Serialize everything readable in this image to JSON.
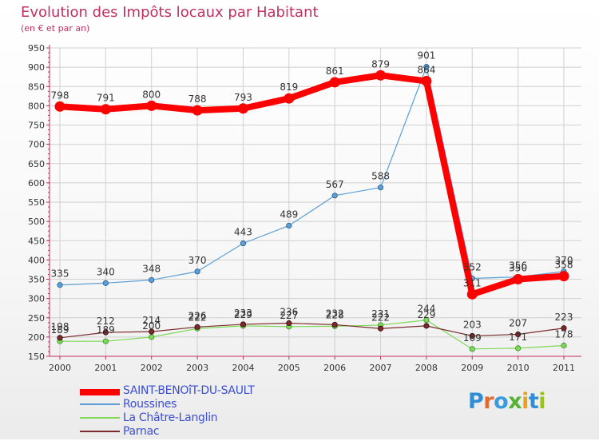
{
  "title": "Evolution des Impôts locaux par Habitant",
  "subtitle": "(en € et par an)",
  "logo": {
    "text": "Proxiti",
    "letters": [
      "P",
      "r",
      "o",
      "x",
      "i",
      "t",
      "i"
    ]
  },
  "colors": {
    "saint_benoit": "#ff0000",
    "roussines": "#5a9fd6",
    "la_chatre": "#7ed957",
    "parnac": "#7a2a2a",
    "axis": "#c03060",
    "grid": "#d0d0d0",
    "legend_text": "#3a4fd4"
  },
  "chart_data": {
    "type": "line",
    "title": "Evolution des Impôts locaux par Habitant",
    "subtitle": "(en € et par an)",
    "xlabel": "",
    "ylabel": "",
    "ylim": [
      150,
      950
    ],
    "yticks": [
      150,
      200,
      250,
      300,
      350,
      400,
      450,
      500,
      550,
      600,
      650,
      700,
      750,
      800,
      850,
      900,
      950
    ],
    "x": [
      "2000",
      "2001",
      "2002",
      "2003",
      "2004",
      "2005",
      "2006",
      "2007",
      "2008",
      "2009",
      "2010",
      "2011"
    ],
    "legend_position": "bottom-left",
    "grid": true,
    "series": [
      {
        "name": "SAINT-BENOîT-DU-SAULT",
        "key": "saint_benoit",
        "values": [
          798,
          791,
          800,
          788,
          793,
          819,
          861,
          879,
          864,
          311,
          350,
          358
        ],
        "labels": [
          "798",
          "791",
          "800",
          "788",
          "793",
          "819",
          "861",
          "879",
          "864",
          "311",
          "350",
          "358"
        ]
      },
      {
        "name": "Roussines",
        "key": "roussines",
        "values": [
          335,
          340,
          348,
          370,
          443,
          489,
          567,
          588,
          901,
          352,
          356,
          370
        ],
        "labels": [
          "335",
          "340",
          "348",
          "370",
          "443",
          "489",
          "567",
          "588",
          "901",
          "352",
          "356",
          "370"
        ]
      },
      {
        "name": "La Châtre-Langlin",
        "key": "la_chatre",
        "values": [
          189,
          189,
          200,
          222,
          229,
          227,
          228,
          231,
          244,
          169,
          171,
          178
        ],
        "labels": [
          "189",
          "189",
          "200",
          "222",
          "229",
          "227",
          "228",
          "231",
          "244",
          "169",
          "171",
          "178"
        ]
      },
      {
        "name": "Parnac",
        "key": "parnac",
        "values": [
          198,
          212,
          214,
          226,
          233,
          236,
          232,
          222,
          229,
          203,
          207,
          223
        ],
        "labels": [
          "198",
          "212",
          "214",
          "226",
          "233",
          "236",
          "232",
          "222",
          "229",
          "203",
          "207",
          "223"
        ]
      }
    ]
  }
}
